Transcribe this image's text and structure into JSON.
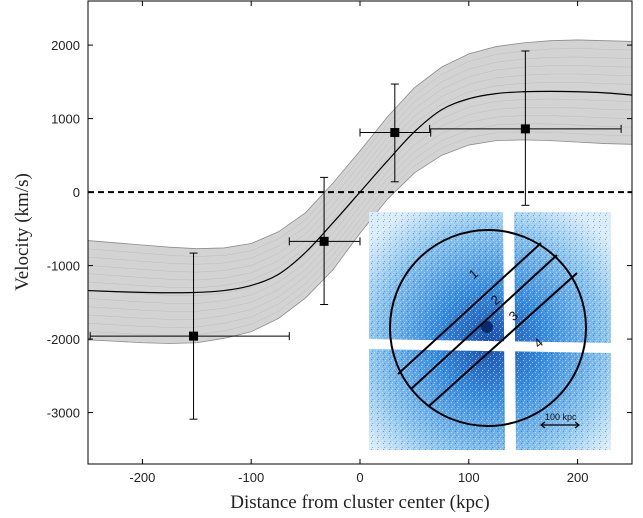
{
  "chart_data": {
    "type": "scatter",
    "title": "",
    "xlabel": "Distance from cluster center (kpc)",
    "ylabel": "Velocity (km/s)",
    "xlim": [
      -250,
      250
    ],
    "ylim": [
      -3700,
      2600
    ],
    "xticks": [
      -200,
      -100,
      0,
      100,
      200
    ],
    "yticks": [
      -3000,
      -2000,
      -1000,
      0,
      1000,
      2000
    ],
    "grid": false,
    "zero_line": {
      "y": 0,
      "style": "dashed"
    },
    "series": [
      {
        "kind": "points_with_errorbars",
        "marker": "square",
        "points": [
          {
            "x": -153,
            "y": -1960,
            "xerr_low": 95,
            "xerr_high": 88,
            "yerr_low": 1130,
            "yerr_high": 1130
          },
          {
            "x": -33,
            "y": -670,
            "xerr_low": 32,
            "xerr_high": 33,
            "yerr_low": 860,
            "yerr_high": 870
          },
          {
            "x": 32,
            "y": 810,
            "xerr_low": 32,
            "xerr_high": 33,
            "yerr_low": 670,
            "yerr_high": 660
          },
          {
            "x": 152,
            "y": 860,
            "xerr_low": 88,
            "xerr_high": 88,
            "yerr_low": 1040,
            "yerr_high": 1060
          }
        ]
      },
      {
        "kind": "model_curve",
        "x": [
          -250,
          -225,
          -200,
          -175,
          -150,
          -125,
          -100,
          -75,
          -50,
          -25,
          0,
          25,
          50,
          75,
          100,
          125,
          150,
          175,
          200,
          225,
          250
        ],
        "y": [
          -1340,
          -1355,
          -1365,
          -1370,
          -1365,
          -1340,
          -1270,
          -1120,
          -820,
          -420,
          0,
          420,
          820,
          1120,
          1270,
          1340,
          1365,
          1370,
          1365,
          1350,
          1320
        ]
      },
      {
        "kind": "uncertainty_band",
        "x": [
          -250,
          -225,
          -200,
          -175,
          -150,
          -125,
          -100,
          -75,
          -50,
          -25,
          0,
          25,
          50,
          75,
          100,
          125,
          150,
          175,
          200,
          225,
          250
        ],
        "upper": [
          -660,
          -690,
          -720,
          -750,
          -770,
          -760,
          -700,
          -540,
          -280,
          120,
          560,
          1020,
          1420,
          1700,
          1880,
          1980,
          2030,
          2060,
          2070,
          2060,
          2050
        ],
        "lower": [
          -2010,
          -2030,
          -2050,
          -2060,
          -2050,
          -1990,
          -1900,
          -1720,
          -1440,
          -1060,
          -560,
          -100,
          260,
          500,
          640,
          700,
          710,
          700,
          680,
          660,
          650
        ]
      }
    ],
    "inset": {
      "description": "X-ray map of the cluster with a circular aperture divided into four strips",
      "strip_labels": [
        "1",
        "2",
        "3",
        "4"
      ],
      "scale_bar_label": "100 kpc",
      "colors": {
        "background": "#ffffff",
        "map_dark": "#1b4fa8",
        "map_mid": "#3a8de0",
        "map_light": "#8fc6f0"
      }
    },
    "colors": {
      "band_fill": "#d3d3d3",
      "band_edge": "#8c8c8c",
      "curve": "#000000",
      "points": "#000000"
    }
  }
}
